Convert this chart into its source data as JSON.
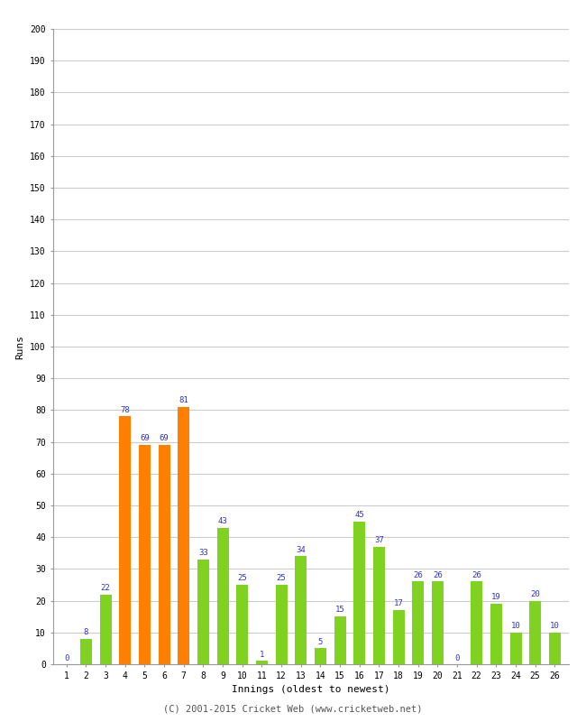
{
  "innings": [
    1,
    2,
    3,
    4,
    5,
    6,
    7,
    8,
    9,
    10,
    11,
    12,
    13,
    14,
    15,
    16,
    17,
    18,
    19,
    20,
    21,
    22,
    23,
    24,
    25,
    26
  ],
  "runs": [
    0,
    8,
    22,
    78,
    69,
    69,
    81,
    33,
    43,
    25,
    1,
    25,
    34,
    5,
    15,
    45,
    37,
    17,
    26,
    26,
    0,
    26,
    19,
    10,
    20,
    10
  ],
  "colors": [
    "#7fd320",
    "#7fd320",
    "#7fd320",
    "#ff8000",
    "#ff8000",
    "#ff8000",
    "#ff8000",
    "#7fd320",
    "#7fd320",
    "#7fd320",
    "#7fd320",
    "#7fd320",
    "#7fd320",
    "#7fd320",
    "#7fd320",
    "#7fd320",
    "#7fd320",
    "#7fd320",
    "#7fd320",
    "#7fd320",
    "#7fd320",
    "#7fd320",
    "#7fd320",
    "#7fd320",
    "#7fd320",
    "#7fd320"
  ],
  "xlabel": "Innings (oldest to newest)",
  "ylabel": "Runs",
  "ylim": [
    0,
    200
  ],
  "yticks": [
    0,
    10,
    20,
    30,
    40,
    50,
    60,
    70,
    80,
    90,
    100,
    110,
    120,
    130,
    140,
    150,
    160,
    170,
    180,
    190,
    200
  ],
  "label_color": "#3333cc",
  "label_fontsize": 6.5,
  "axis_label_fontsize": 8,
  "tick_fontsize": 7,
  "footer": "(C) 2001-2015 Cricket Web (www.cricketweb.net)",
  "footer_fontsize": 7.5,
  "background_color": "#ffffff",
  "grid_color": "#cccccc",
  "bar_width": 0.6
}
